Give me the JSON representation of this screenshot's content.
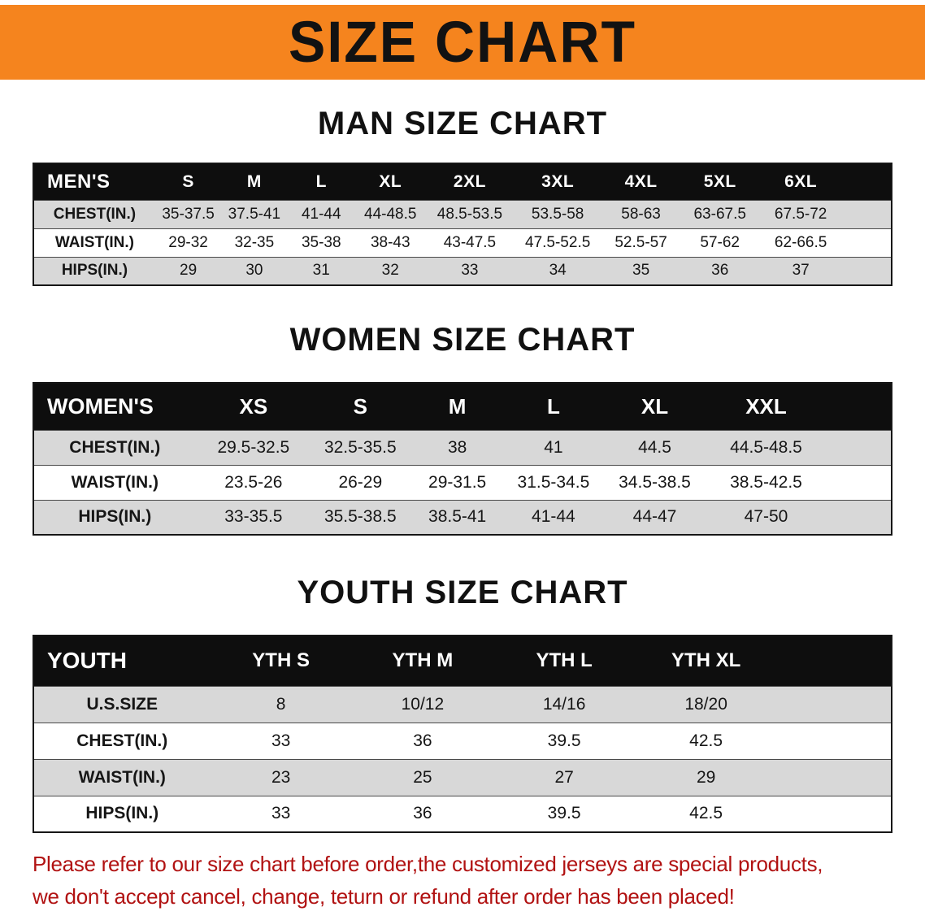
{
  "colors": {
    "banner_bg": "#F5841E",
    "header_bg": "#0E0E0E",
    "stripe_gray": "#D8D8D8",
    "disclaimer_red": "#B11212"
  },
  "banner": {
    "title": "SIZE CHART"
  },
  "sections": [
    {
      "heading": "MAN SIZE CHART",
      "table": {
        "name": "mens",
        "header": [
          "MEN'S",
          "S",
          "M",
          "L",
          "XL",
          "2XL",
          "3XL",
          "4XL",
          "5XL",
          "6XL"
        ],
        "rows": [
          [
            "CHEST(IN.)",
            "35-37.5",
            "37.5-41",
            "41-44",
            "44-48.5",
            "48.5-53.5",
            "53.5-58",
            "58-63",
            "63-67.5",
            "67.5-72"
          ],
          [
            "WAIST(IN.)",
            "29-32",
            "32-35",
            "35-38",
            "38-43",
            "43-47.5",
            "47.5-52.5",
            "52.5-57",
            "57-62",
            "62-66.5"
          ],
          [
            "HIPS(IN.)",
            "29",
            "30",
            "31",
            "32",
            "33",
            "34",
            "35",
            "36",
            "37"
          ]
        ]
      }
    },
    {
      "heading": "WOMEN SIZE CHART",
      "table": {
        "name": "womens",
        "header": [
          "WOMEN'S",
          "XS",
          "S",
          "M",
          "L",
          "XL",
          "XXL"
        ],
        "rows": [
          [
            "CHEST(IN.)",
            "29.5-32.5",
            "32.5-35.5",
            "38",
            "41",
            "44.5",
            "44.5-48.5"
          ],
          [
            "WAIST(IN.)",
            "23.5-26",
            "26-29",
            "29-31.5",
            "31.5-34.5",
            "34.5-38.5",
            "38.5-42.5"
          ],
          [
            "HIPS(IN.)",
            "33-35.5",
            "35.5-38.5",
            "38.5-41",
            "41-44",
            "44-47",
            "47-50"
          ]
        ]
      }
    },
    {
      "heading": "YOUTH SIZE CHART",
      "table": {
        "name": "youth",
        "header": [
          "YOUTH",
          "YTH S",
          "YTH M",
          "YTH L",
          "YTH XL"
        ],
        "rows": [
          [
            "U.S.SIZE",
            "8",
            "10/12",
            "14/16",
            "18/20"
          ],
          [
            "CHEST(IN.)",
            "33",
            "36",
            "39.5",
            "42.5"
          ],
          [
            "WAIST(IN.)",
            "23",
            "25",
            "27",
            "29"
          ],
          [
            "HIPS(IN.)",
            "33",
            "36",
            "39.5",
            "42.5"
          ]
        ]
      }
    }
  ],
  "disclaimer": {
    "line1": "Please refer to our size chart before order,the customized jerseys are special products,",
    "line2": "we don't accept cancel, change, teturn or refund after order has been placed!"
  }
}
